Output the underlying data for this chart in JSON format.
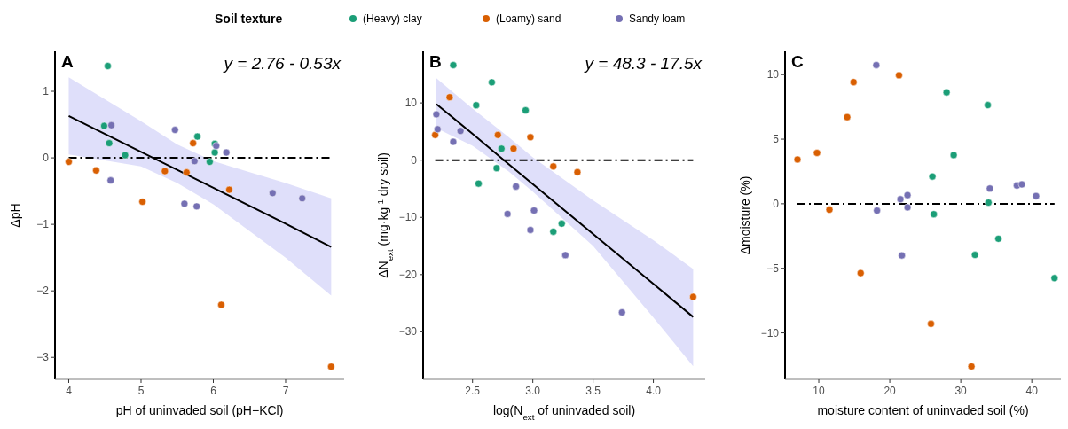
{
  "chart_data": [
    {
      "type": "scatter",
      "xlabel": "pH of uninvaded soil (pH−KCl)",
      "ylabel": "ΔpH",
      "legend_title": "Soil texture",
      "legend": "top",
      "marker": "circle",
      "grid": false,
      "annotations": [
        "A",
        "y = 2.76 - 0.53x"
      ],
      "xlim": [
        3.81,
        7.81
      ],
      "xticks": [
        4,
        5,
        6,
        7
      ],
      "ylim": [
        -3.33,
        1.6
      ],
      "yticks": [
        1,
        0,
        {
          "value": -1,
          "label": "−1"
        },
        {
          "value": -2,
          "label": "−2"
        },
        {
          "value": -3,
          "label": "−3"
        }
      ],
      "ref_lines": [
        {
          "axis": "y",
          "value": 0,
          "line_style": "dashed",
          "color": "#000000"
        }
      ],
      "series": [
        {
          "name": "(Heavy) clay",
          "color": "#1b9e77",
          "x": [
            4.54,
            4.49,
            4.56,
            4.78,
            5.78,
            6.02,
            6.02,
            5.95
          ],
          "values": [
            1.38,
            0.48,
            0.22,
            0.04,
            0.32,
            0.21,
            0.08,
            -0.06
          ]
        },
        {
          "name": "(Loamy) sand",
          "color": "#d95f02",
          "x": [
            4.0,
            4.38,
            5.02,
            5.33,
            5.72,
            5.63,
            6.22,
            6.11,
            7.63
          ],
          "values": [
            -0.06,
            -0.19,
            -0.66,
            -0.2,
            0.22,
            -0.22,
            -0.48,
            -2.21,
            -3.14
          ]
        },
        {
          "name": "Sandy loam",
          "color": "#7570b3",
          "x": [
            4.59,
            4.58,
            5.47,
            5.74,
            5.6,
            5.77,
            6.04,
            6.18,
            6.82,
            7.23
          ],
          "values": [
            0.49,
            -0.34,
            0.42,
            -0.05,
            -0.69,
            -0.73,
            0.18,
            0.08,
            -0.53,
            -0.61
          ]
        },
        {
          "type": "line",
          "marker": "none",
          "color": "#000000",
          "x": [
            4.0,
            5.0,
            5.5,
            6.0,
            7.0,
            7.63
          ],
          "values": [
            0.63,
            0.09,
            -0.18,
            -0.45,
            -0.99,
            -1.34
          ],
          "lower": [
            0.05,
            -0.13,
            -0.38,
            -0.7,
            -1.5,
            -2.07
          ],
          "upper": [
            1.21,
            0.55,
            0.2,
            -0.05,
            -0.38,
            -0.61
          ]
        }
      ]
    },
    {
      "type": "scatter",
      "xlabel": "log(N$_{ext}$ of uninvaded soil)",
      "ylabel": "ΔN$_{ext}$ (mg·kg$^{-1}$ dry soil)",
      "marker": "circle",
      "grid": false,
      "annotations": [
        "B",
        "y = 48.3 - 17.5x"
      ],
      "xlim": [
        2.09,
        4.43
      ],
      "xticks": [
        {
          "value": 2.5,
          "label": "2.5"
        },
        {
          "value": 3,
          "label": "3.0"
        },
        {
          "value": 3.5,
          "label": "3.5"
        },
        {
          "value": 4,
          "label": "4.0"
        }
      ],
      "ylim": [
        -38.3,
        19
      ],
      "yticks": [
        10,
        0,
        {
          "value": -10,
          "label": "−10"
        },
        {
          "value": -20,
          "label": "−20"
        },
        {
          "value": -30,
          "label": "−30"
        }
      ],
      "ref_lines": [
        {
          "axis": "y",
          "value": 0,
          "line_style": "dashed",
          "color": "#000000"
        }
      ],
      "series": [
        {
          "color": "#1b9e77",
          "x": [
            2.34,
            2.66,
            2.53,
            2.94,
            2.74,
            2.7,
            2.55,
            3.17,
            3.24
          ],
          "values": [
            16.6,
            13.6,
            9.6,
            8.7,
            2.0,
            -1.4,
            -4.1,
            -12.5,
            -11.1
          ]
        },
        {
          "color": "#d95f02",
          "x": [
            2.31,
            2.19,
            2.71,
            2.84,
            2.98,
            3.17,
            3.37,
            4.33
          ],
          "values": [
            11.0,
            4.4,
            4.4,
            2.0,
            4.0,
            -1.1,
            -2.1,
            -23.9
          ]
        },
        {
          "color": "#7570b3",
          "x": [
            2.2,
            2.21,
            2.4,
            2.34,
            2.86,
            2.79,
            3.01,
            2.98,
            3.27,
            3.74
          ],
          "values": [
            8.0,
            5.4,
            5.1,
            3.2,
            -4.6,
            -9.4,
            -8.8,
            -12.2,
            -16.6,
            -26.6
          ]
        },
        {
          "type": "line",
          "marker": "none",
          "color": "#000000",
          "x": [
            2.2,
            2.5,
            2.8,
            3.0,
            3.5,
            4.0,
            4.33
          ],
          "values": [
            9.8,
            4.6,
            -0.7,
            -4.2,
            -12.9,
            -21.6,
            -27.4
          ],
          "lower": [
            5.6,
            2.5,
            -2.0,
            -5.5,
            -15,
            -27.5,
            -36
          ],
          "upper": [
            14.3,
            9.0,
            4.0,
            0.5,
            -7,
            -14,
            -19
          ]
        }
      ]
    },
    {
      "type": "scatter",
      "xlabel": "moisture content of uninvaded soil (%)",
      "ylabel": "Δmoisture (%)",
      "marker": "circle",
      "grid": false,
      "annotations": [
        "C"
      ],
      "xlim": [
        5.25,
        44.1
      ],
      "xticks": [
        10,
        20,
        30,
        40
      ],
      "ylim": [
        -13.6,
        11.8
      ],
      "yticks": [
        10,
        5,
        0,
        {
          "value": -5,
          "label": "−5"
        },
        {
          "value": -10,
          "label": "−10"
        }
      ],
      "ref_lines": [
        {
          "axis": "y",
          "value": 0,
          "line_style": "dashed",
          "color": "#000000"
        }
      ],
      "series": [
        {
          "color": "#1b9e77",
          "x": [
            28.0,
            33.8,
            29.0,
            26.0,
            26.2,
            33.9,
            35.3,
            32.0,
            43.2
          ],
          "values": [
            8.63,
            7.64,
            3.77,
            2.11,
            -0.81,
            0.09,
            -2.71,
            -3.96,
            -5.76
          ]
        },
        {
          "color": "#d95f02",
          "x": [
            7.0,
            9.75,
            11.5,
            14.0,
            14.9,
            15.9,
            21.3,
            25.8,
            31.5
          ],
          "values": [
            3.43,
            3.94,
            -0.46,
            6.71,
            9.42,
            -5.37,
            9.95,
            -9.3,
            -12.6
          ]
        },
        {
          "color": "#7570b3",
          "x": [
            18.1,
            18.2,
            21.5,
            22.5,
            22.5,
            21.7,
            34.1,
            37.9,
            38.6,
            40.6
          ],
          "values": [
            10.74,
            -0.53,
            0.35,
            0.67,
            -0.28,
            -4.0,
            1.18,
            1.41,
            1.5,
            0.6
          ]
        }
      ]
    }
  ]
}
